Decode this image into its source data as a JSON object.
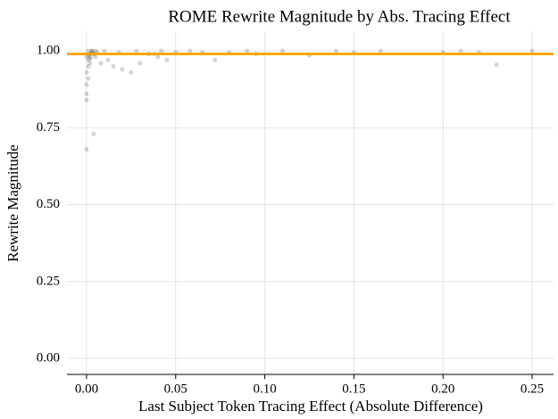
{
  "chart_data": {
    "type": "scatter",
    "title": "ROME Rewrite Magnitude by Abs. Tracing Effect",
    "x_label": "Last Subject Token Tracing Effect (Absolute Difference)",
    "y_label": "Rewrite Magnitude",
    "x": [
      0.0,
      0.004,
      0.0,
      0.0,
      0.0,
      0.001,
      0.0,
      0.001,
      0.002,
      0.001,
      0.0,
      0.002,
      0.003,
      0.001,
      0.004,
      0.002,
      0.003,
      0.005,
      0.001,
      0.002,
      0.004,
      0.006,
      0.003,
      0.005,
      0.002,
      0.008,
      0.012,
      0.015,
      0.02,
      0.025,
      0.03,
      0.035,
      0.04,
      0.045,
      0.05,
      0.058,
      0.065,
      0.072,
      0.08,
      0.09,
      0.095,
      0.11,
      0.125,
      0.14,
      0.15,
      0.165,
      0.2,
      0.21,
      0.22,
      0.23,
      0.25,
      0.01,
      0.018,
      0.028,
      0.038,
      0.042
    ],
    "values": [
      0.68,
      0.73,
      0.84,
      0.86,
      0.89,
      0.91,
      0.93,
      0.95,
      0.96,
      0.97,
      0.98,
      0.99,
      1.0,
      1.0,
      0.99,
      0.98,
      0.995,
      1.0,
      0.985,
      0.975,
      0.99,
      0.995,
      1.0,
      0.98,
      0.99,
      0.96,
      0.97,
      0.95,
      0.94,
      0.93,
      0.96,
      0.99,
      0.98,
      0.97,
      0.995,
      1.0,
      0.995,
      0.97,
      0.995,
      1.0,
      0.99,
      1.0,
      0.985,
      1.0,
      0.995,
      1.0,
      0.995,
      1.0,
      0.995,
      0.955,
      1.0,
      1.0,
      0.995,
      1.0,
      0.99,
      1.0
    ],
    "color": "#555555",
    "fit_line": {
      "x": [
        -0.011,
        0.262
      ],
      "y": [
        0.99,
        0.99
      ],
      "color": "#ffa500"
    },
    "xlim": [
      -0.011,
      0.262
    ],
    "ylim": [
      -0.052,
      1.064
    ],
    "xticks": [
      {
        "value": 0,
        "label": "0.00"
      },
      {
        "value": 0.05,
        "label": "0.05"
      },
      {
        "value": 0.1,
        "label": "0.10"
      },
      {
        "value": 0.15,
        "label": "0.15"
      },
      {
        "value": 0.2,
        "label": "0.20"
      },
      {
        "value": 0.25,
        "label": "0.25"
      }
    ],
    "yticks": [
      {
        "value": 0,
        "label": "0.00"
      },
      {
        "value": 0.25,
        "label": "0.25"
      },
      {
        "value": 0.5,
        "label": "0.50"
      },
      {
        "value": 0.75,
        "label": "0.75"
      },
      {
        "value": 1,
        "label": "1.00"
      }
    ],
    "grid": true
  }
}
